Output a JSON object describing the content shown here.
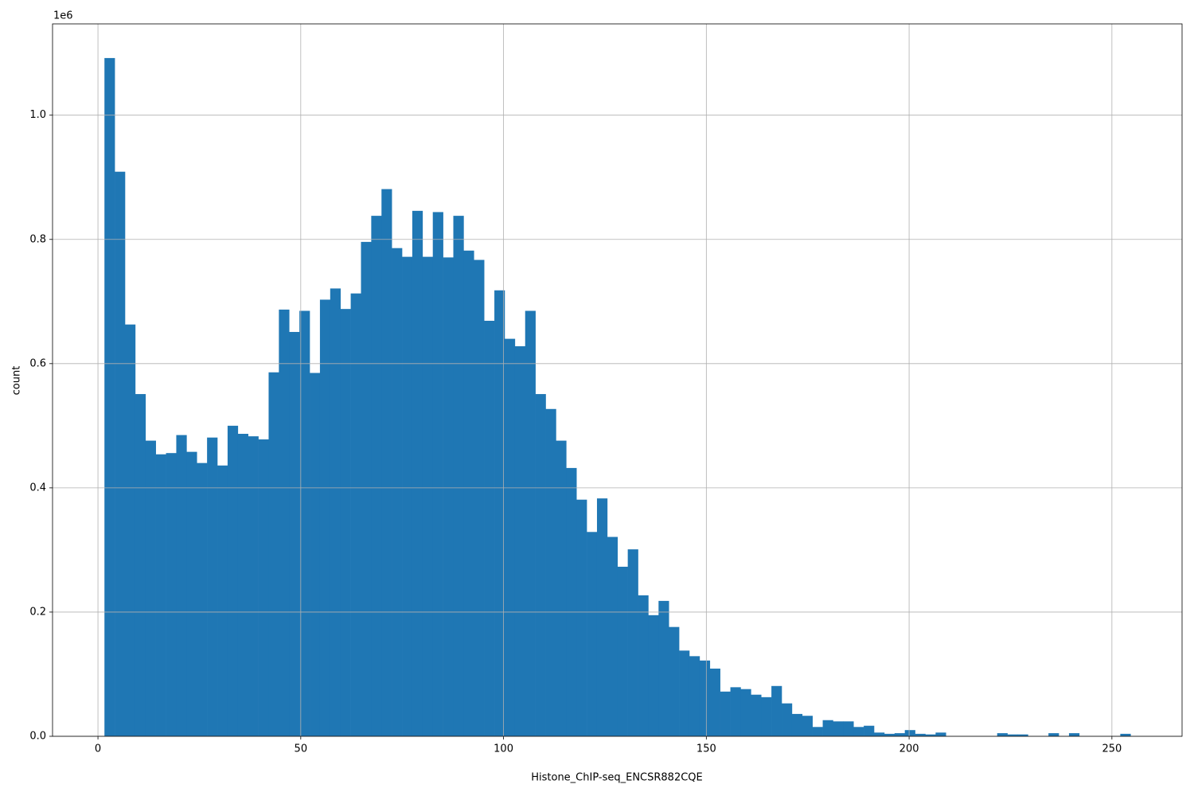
{
  "chart_data": {
    "type": "histogram",
    "xlabel": "Histone_ChIP-seq_ENCSR882CQE",
    "ylabel": "count",
    "y_offset_label": "1e6",
    "color": "#1f77b4",
    "grid": true,
    "bins": [
      1.6,
      4.13,
      6.66,
      9.19,
      11.72,
      14.25,
      16.78,
      19.31,
      21.84,
      24.37,
      26.9,
      29.43,
      31.96,
      34.49,
      37.02,
      39.55,
      42.08,
      44.61,
      47.14,
      49.67,
      52.2,
      54.73,
      57.26,
      59.79,
      62.32,
      64.85,
      67.38,
      69.91,
      72.44,
      74.97,
      77.5,
      80.03,
      82.56,
      85.09,
      87.62,
      90.15,
      92.68,
      95.21,
      97.74,
      100.27,
      102.8,
      105.33,
      107.86,
      110.39,
      112.92,
      115.45,
      117.98,
      120.51,
      123.04,
      125.57,
      128.1,
      130.63,
      133.16,
      135.69,
      138.22,
      140.75,
      143.28,
      145.81,
      148.34,
      150.87,
      153.4,
      155.93,
      158.46,
      160.99,
      163.52,
      166.05,
      168.58,
      171.11,
      173.64,
      176.17,
      178.7,
      181.23,
      183.76,
      186.29,
      188.82,
      191.35,
      193.88,
      196.41,
      198.94,
      201.47,
      204.0,
      206.53,
      209.06,
      211.59,
      214.12,
      216.65,
      219.18,
      221.71,
      224.24,
      226.77,
      229.3,
      231.83,
      234.36,
      236.89,
      239.42,
      241.95,
      244.48,
      247.01,
      249.54,
      252.07,
      254.6
    ],
    "values": [
      1.092,
      0.909,
      0.663,
      0.551,
      0.476,
      0.454,
      0.456,
      0.485,
      0.458,
      0.44,
      0.481,
      0.436,
      0.5,
      0.487,
      0.483,
      0.478,
      0.586,
      0.687,
      0.651,
      0.685,
      0.585,
      0.703,
      0.721,
      0.688,
      0.713,
      0.796,
      0.838,
      0.881,
      0.786,
      0.772,
      0.846,
      0.772,
      0.844,
      0.771,
      0.838,
      0.782,
      0.767,
      0.669,
      0.718,
      0.64,
      0.628,
      0.685,
      0.551,
      0.527,
      0.476,
      0.432,
      0.381,
      0.329,
      0.383,
      0.321,
      0.273,
      0.301,
      0.227,
      0.195,
      0.218,
      0.176,
      0.138,
      0.129,
      0.122,
      0.109,
      0.072,
      0.079,
      0.076,
      0.067,
      0.063,
      0.081,
      0.053,
      0.036,
      0.033,
      0.015,
      0.026,
      0.024,
      0.024,
      0.015,
      0.017,
      0.006,
      0.004,
      0.005,
      0.01,
      0.004,
      0.003,
      0.006,
      0,
      0,
      0,
      0,
      0,
      0.005,
      0.003,
      0.003,
      0,
      0,
      0.005,
      0,
      0.005,
      0,
      0,
      0,
      0,
      0.004
    ],
    "xlim": [
      -11.2,
      267.3
    ],
    "ylim": [
      0,
      1.147
    ],
    "xticks": [
      0,
      50,
      100,
      150,
      200,
      250
    ],
    "yticks": [
      {
        "value": 0,
        "label": "0.0"
      },
      0.2,
      0.4,
      0.6,
      0.8,
      {
        "value": 1,
        "label": "1.0"
      }
    ]
  }
}
